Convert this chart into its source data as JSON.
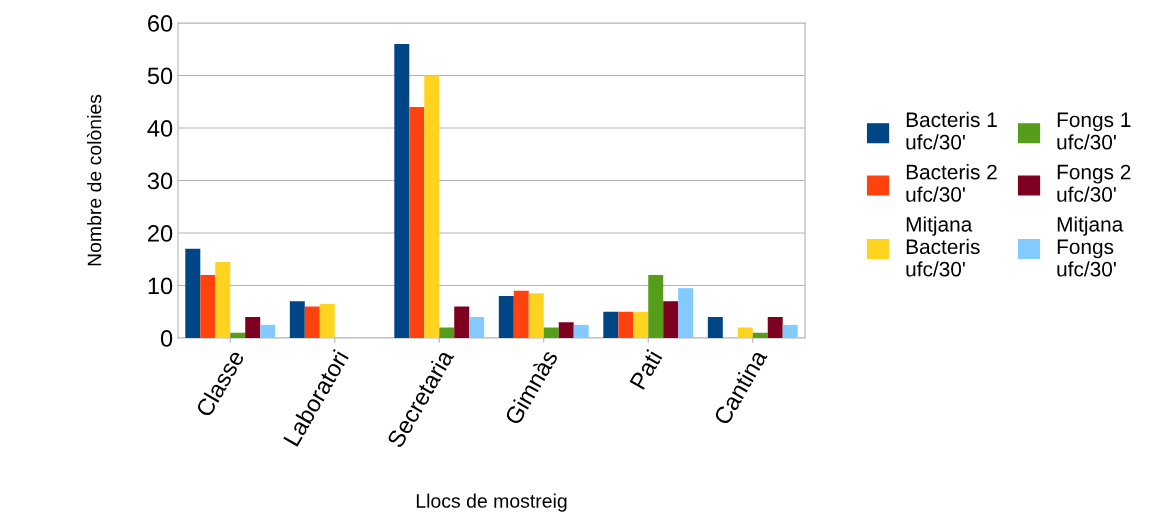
{
  "chart_data": {
    "type": "bar",
    "xlabel": "Llocs de mostreig",
    "ylabel": "Nombre de colònies",
    "categories": [
      "Classe",
      "Laboratori",
      "Secretaria",
      "Gimnàs",
      "Pati",
      "Cantina"
    ],
    "series": [
      {
        "name": "Bacteris 1\nufc/30'",
        "color": "#004586",
        "values": [
          17,
          7,
          56,
          8,
          5,
          4
        ]
      },
      {
        "name": "Bacteris 2\nufc/30'",
        "color": "#ff420e",
        "values": [
          12,
          6,
          44,
          9,
          5,
          null
        ]
      },
      {
        "name": "Mitjana\nBacteris\nufc/30'",
        "color": "#ffd320",
        "values": [
          14.5,
          6.5,
          50,
          8.5,
          5,
          2
        ]
      },
      {
        "name": "Fongs 1\nufc/30'",
        "color": "#579d1c",
        "values": [
          1,
          null,
          2,
          2,
          12,
          1
        ]
      },
      {
        "name": "Fongs 2\nufc/30'",
        "color": "#7e0021",
        "values": [
          4,
          null,
          6,
          3,
          7,
          4
        ]
      },
      {
        "name": "Mitjana\nFongs\nufc/30'",
        "color": "#83caff",
        "values": [
          2.5,
          null,
          4,
          2.5,
          9.5,
          2.5
        ]
      }
    ],
    "ylim": [
      0,
      60
    ],
    "yticks": [
      0,
      10,
      20,
      30,
      40,
      50,
      60
    ],
    "grid": "y",
    "legend": "right"
  }
}
